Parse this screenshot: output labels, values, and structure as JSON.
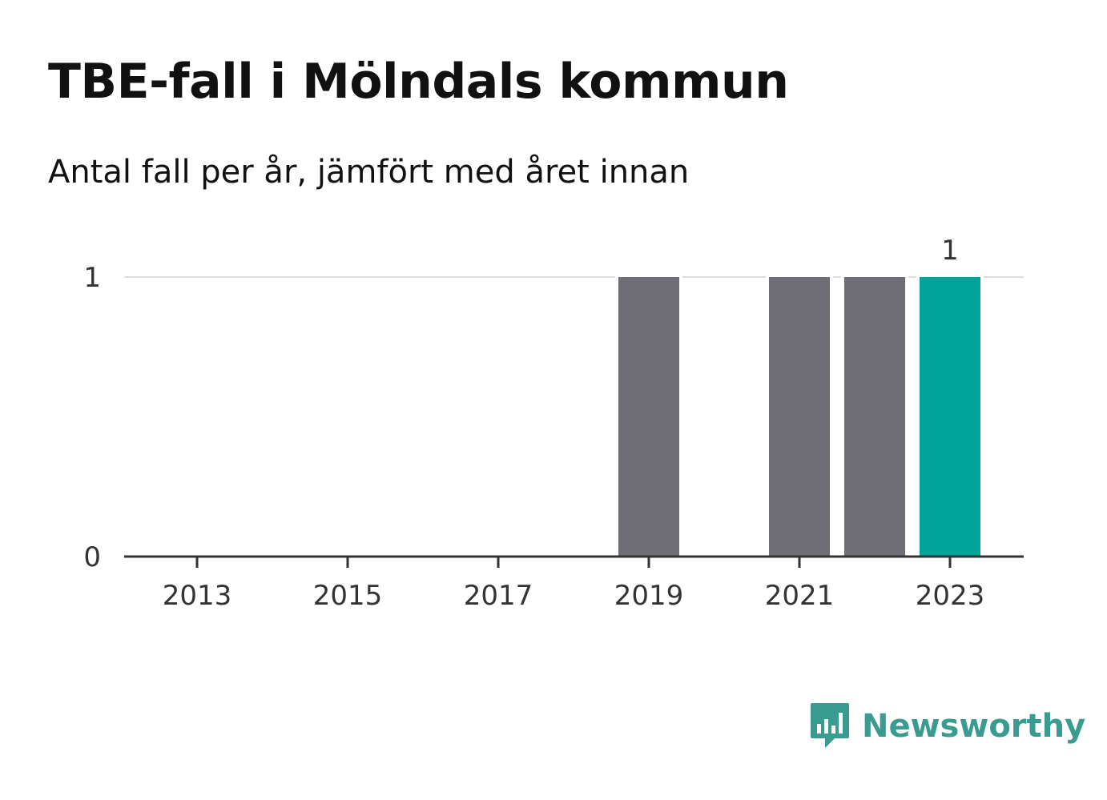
{
  "header": {
    "title": "TBE-fall i Mölndals kommun",
    "subtitle": "Antal fall per år, jämfört med året innan"
  },
  "brand": {
    "name": "Newsworthy",
    "icon": "newsworthy-logo-icon",
    "color": "#3a9b90"
  },
  "colors": {
    "bar": "#6f6e76",
    "highlight": "#00a499",
    "grid": "#dddddd",
    "axis": "#333333",
    "text": "#333333"
  },
  "chart_data": {
    "type": "bar",
    "categories": [
      "2013",
      "2014",
      "2015",
      "2016",
      "2017",
      "2018",
      "2019",
      "2020",
      "2021",
      "2022",
      "2023"
    ],
    "values": [
      0,
      0,
      0,
      0,
      0,
      0,
      1,
      0,
      1,
      1,
      1
    ],
    "highlight": "2023",
    "data_labels": [
      {
        "category": "2023",
        "text": "1"
      }
    ],
    "x_tick_labels": [
      "2013",
      "2015",
      "2017",
      "2019",
      "2021",
      "2023"
    ],
    "y_ticks": [
      0,
      1
    ],
    "ylim": [
      0,
      1
    ],
    "grid": true,
    "xlabel": "",
    "ylabel": ""
  }
}
